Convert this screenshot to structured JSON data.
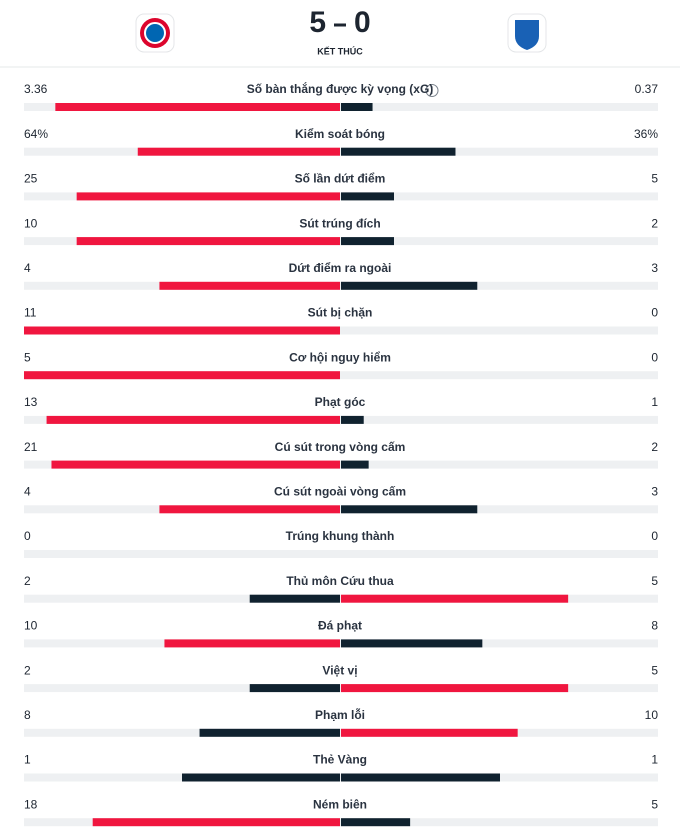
{
  "header": {
    "home_score": 5,
    "away_score": 0,
    "status": "KẾT THÚC"
  },
  "colors": {
    "leading": "#f0163f",
    "trailing": "#10222f",
    "track": "#eef0f2"
  },
  "stats": [
    {
      "label": "Số bàn thắng được kỳ vọng (xG)",
      "home": 3.36,
      "away": 0.37
    },
    {
      "label": "Kiểm soát bóng",
      "home": {
        "value": 64,
        "label": "64%"
      },
      "away": {
        "value": 36,
        "label": "36%"
      }
    },
    {
      "label": "Số lần dứt điểm",
      "home": 25,
      "away": 5
    },
    {
      "label": "Sút trúng đích",
      "home": 10,
      "away": 2
    },
    {
      "label": "Dứt điểm ra ngoài",
      "home": 4,
      "away": 3
    },
    {
      "label": "Sút bị chặn",
      "home": 11,
      "away": 0
    },
    {
      "label": "Cơ hội nguy hiểm",
      "home": 5,
      "away": 0
    },
    {
      "label": "Phạt góc",
      "home": 13,
      "away": 1
    },
    {
      "label": "Cú sút trong vòng cấm",
      "home": 21,
      "away": 2
    },
    {
      "label": "Cú sút ngoài vòng cấm",
      "home": 4,
      "away": 3
    },
    {
      "label": "Trúng khung thành",
      "home": 0,
      "away": 0
    },
    {
      "label": "Thủ môn Cứu thua",
      "home": 2,
      "away": 5
    },
    {
      "label": "Đá phạt",
      "home": 10,
      "away": 8
    },
    {
      "label": "Việt vị",
      "home": 2,
      "away": 5
    },
    {
      "label": "Phạm lỗi",
      "home": 8,
      "away": 10
    },
    {
      "label": "Thẻ Vàng",
      "home": 1,
      "away": 1
    },
    {
      "label": "Ném biên",
      "home": 18,
      "away": 5
    }
  ]
}
